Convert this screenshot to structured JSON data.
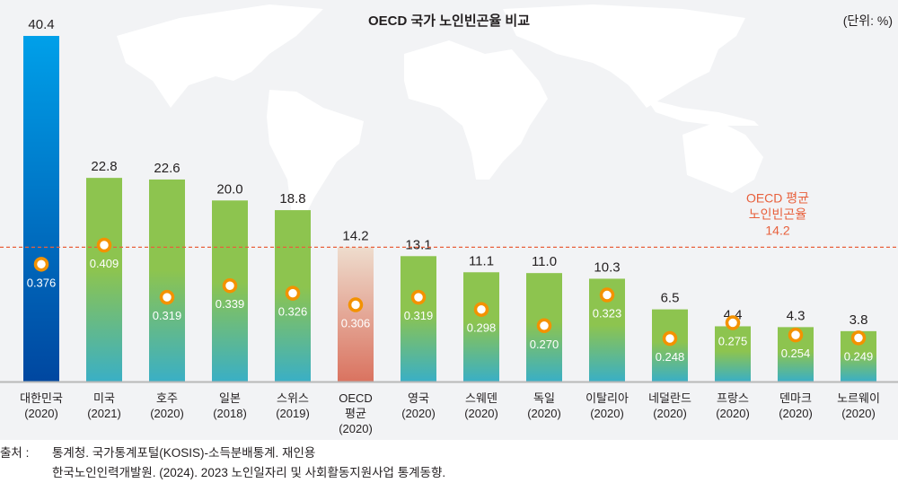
{
  "chart_data": {
    "type": "bar",
    "title": "OECD 국가 노인빈곤율 비교",
    "unit_label": "(단위: %)",
    "xlabel": "",
    "ylabel": "",
    "ylim": [
      0,
      42
    ],
    "grid": false,
    "categories": [
      {
        "name": "대한민국",
        "year": "(2020)"
      },
      {
        "name": "미국",
        "year": "(2021)"
      },
      {
        "name": "호주",
        "year": "(2020)"
      },
      {
        "name": "일본",
        "year": "(2018)"
      },
      {
        "name": "스위스",
        "year": "(2019)"
      },
      {
        "name": "OECD 평균",
        "year": "(2020)"
      },
      {
        "name": "영국",
        "year": "(2020)"
      },
      {
        "name": "스웨덴",
        "year": "(2020)"
      },
      {
        "name": "독일",
        "year": "(2020)"
      },
      {
        "name": "이탈리아",
        "year": "(2020)"
      },
      {
        "name": "네덜란드",
        "year": "(2020)"
      },
      {
        "name": "프랑스",
        "year": "(2020)"
      },
      {
        "name": "덴마크",
        "year": "(2020)"
      },
      {
        "name": "노르웨이",
        "year": "(2020)"
      }
    ],
    "series": [
      {
        "name": "노인빈곤율 (%)",
        "values": [
          40.4,
          22.8,
          22.6,
          20.0,
          18.8,
          14.2,
          13.1,
          11.1,
          11.0,
          10.3,
          6.5,
          4.4,
          4.3,
          3.8
        ]
      },
      {
        "name": "지니계수",
        "values": [
          0.376,
          0.409,
          0.319,
          0.339,
          0.326,
          0.306,
          0.319,
          0.298,
          0.27,
          0.323,
          0.248,
          0.275,
          0.254,
          0.249
        ]
      }
    ],
    "value_labels": [
      "40.4",
      "22.8",
      "22.6",
      "20.0",
      "18.8",
      "14.2",
      "13.1",
      "11.1",
      "11.0",
      "10.3",
      "6.5",
      "4.4",
      "4.3",
      "3.8"
    ],
    "gini_labels": [
      "0.376",
      "0.409",
      "0.319",
      "0.339",
      "0.326",
      "0.306",
      "0.319",
      "0.298",
      "0.270",
      "0.323",
      "0.248",
      "0.275",
      "0.254",
      "0.249"
    ],
    "bar_styles": [
      "highlight",
      "normal",
      "normal",
      "normal",
      "normal",
      "average",
      "normal",
      "normal",
      "normal",
      "normal",
      "normal",
      "normal",
      "normal",
      "normal"
    ],
    "reference_line": {
      "value": 14.2,
      "label_lines": [
        "OECD 평균",
        "노인빈곤율",
        "14.2"
      ]
    },
    "colors": {
      "highlight_top": "#00a0e9",
      "highlight_bottom": "#0047a0",
      "normal_top": "#8dc44f",
      "normal_bottom": "#3aafc5",
      "average_top": "#eedccd",
      "average_bottom": "#da7360",
      "marker_ring": "#f39200",
      "reference": "#e8603c"
    }
  },
  "source": {
    "label": "출처 :",
    "lines": [
      "통계청. 국가통계포털(KOSIS)-소득분배통계. 재인용",
      "한국노인인력개발원. (2024). 2023 노인일자리 및 사회활동지원사업 통계동향."
    ]
  }
}
